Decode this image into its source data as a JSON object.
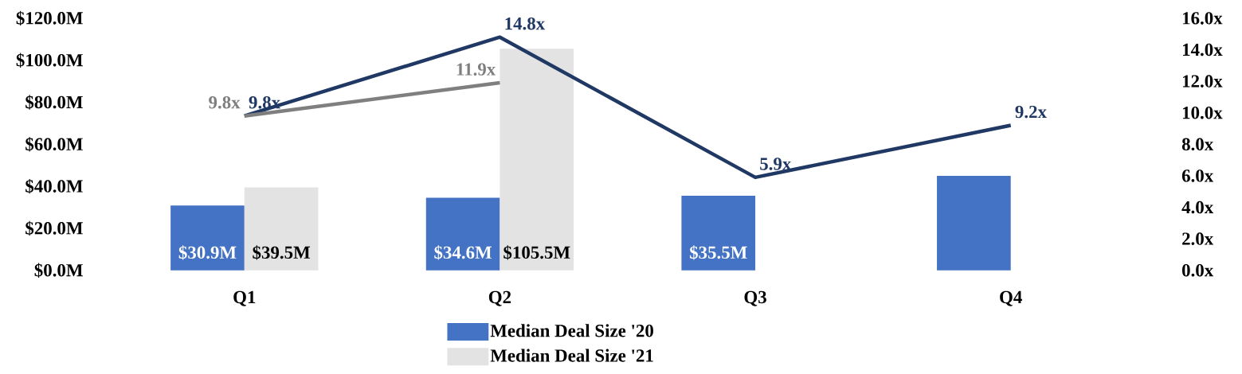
{
  "chart_data": {
    "type": "bar",
    "categories": [
      "Q1",
      "Q2",
      "Q3",
      "Q4"
    ],
    "series": [
      {
        "name": "Median Deal Size '20",
        "color": "#4472c4",
        "values": [
          30.9,
          34.6,
          35.5,
          45
        ],
        "value_labels": [
          "$30.9M",
          "$34.6M",
          "$35.5M",
          null
        ]
      },
      {
        "name": "Median Deal Size '21",
        "color": "#e3e3e3",
        "values": [
          39.5,
          105.5,
          null,
          null
        ],
        "value_labels": [
          "$39.5M",
          "$105.5M",
          null,
          null
        ]
      },
      {
        "type": "line",
        "axis": "y2",
        "color": "#203864",
        "values": [
          9.8,
          14.8,
          5.9,
          9.2
        ],
        "value_labels": [
          "9.8x",
          "14.8x",
          "5.9x",
          "9.2x"
        ]
      },
      {
        "type": "line",
        "axis": "y2",
        "color": "#7f7f7f",
        "values": [
          9.8,
          11.9,
          null,
          null
        ],
        "value_labels": [
          "9.8x",
          "11.9x",
          null,
          null
        ]
      }
    ],
    "ylim": [
      0,
      120
    ],
    "yticks": [
      {
        "value": 0,
        "label": "$0.0M"
      },
      {
        "value": 20,
        "label": "$20.0M"
      },
      {
        "value": 40,
        "label": "$40.0M"
      },
      {
        "value": 60,
        "label": "$60.0M"
      },
      {
        "value": 80,
        "label": "$80.0M"
      },
      {
        "value": 100,
        "label": "$100.0M"
      },
      {
        "value": 120,
        "label": "$120.0M"
      }
    ],
    "y2lim": [
      0,
      16
    ],
    "y2ticks": [
      {
        "value": 0,
        "label": "0.0x"
      },
      {
        "value": 2,
        "label": "2.0x"
      },
      {
        "value": 4,
        "label": "4.0x"
      },
      {
        "value": 6,
        "label": "6.0x"
      },
      {
        "value": 8,
        "label": "8.0x"
      },
      {
        "value": 10,
        "label": "10.0x"
      },
      {
        "value": 12,
        "label": "12.0x"
      },
      {
        "value": 14,
        "label": "14.0x"
      },
      {
        "value": 16,
        "label": "16.0x"
      }
    ],
    "legend": "bottom",
    "grid": false
  }
}
